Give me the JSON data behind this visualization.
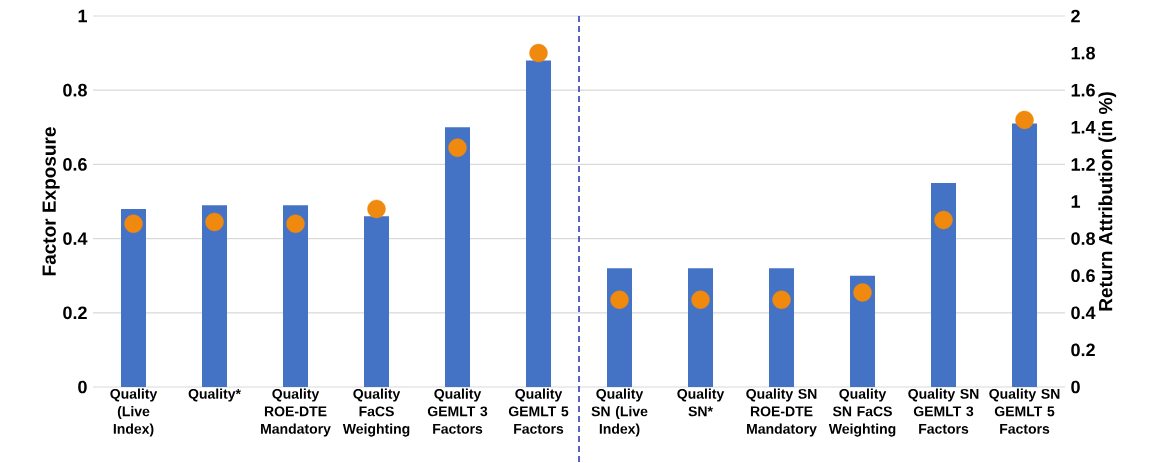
{
  "chart_data": {
    "type": "bar",
    "ylabel": "Factor Exposure",
    "y2label": "Return Attribution (in %)",
    "categories": [
      "Quality (Live Index)",
      "Quality*",
      "Quality ROE-DTE Mandatory",
      "Quality FaCS Weighting",
      "Quality GEMLT 3 Factors",
      "Quality GEMLT 5 Factors",
      "Quality SN (Live Index)",
      "Quality SN*",
      "Quality SN ROE-DTE Mandatory",
      "Quality SN FaCS Weighting",
      "Quality SN GEMLT 3 Factors",
      "Quality SN GEMLT 5 Factors"
    ],
    "series": [
      {
        "color": "#4472c4",
        "values": [
          0.48,
          0.49,
          0.49,
          0.46,
          0.7,
          0.88,
          0.32,
          0.32,
          0.32,
          0.3,
          0.55,
          0.71
        ]
      },
      {
        "type": "scatter",
        "axis": "y2",
        "color": "#ef8a0f",
        "values": [
          0.88,
          0.89,
          0.88,
          0.96,
          1.29,
          1.8,
          0.47,
          0.47,
          0.47,
          0.51,
          0.9,
          1.44
        ]
      }
    ],
    "ylim": [
      0,
      1
    ],
    "yticks": [
      0,
      0.2,
      0.4,
      0.6,
      0.8,
      1
    ],
    "y2lim": [
      0,
      2
    ],
    "y2ticks": [
      0,
      0.2,
      0.4,
      0.6,
      0.8,
      1,
      1.2,
      1.4,
      1.6,
      1.8,
      2
    ],
    "marker": "circle",
    "grid": "y"
  }
}
